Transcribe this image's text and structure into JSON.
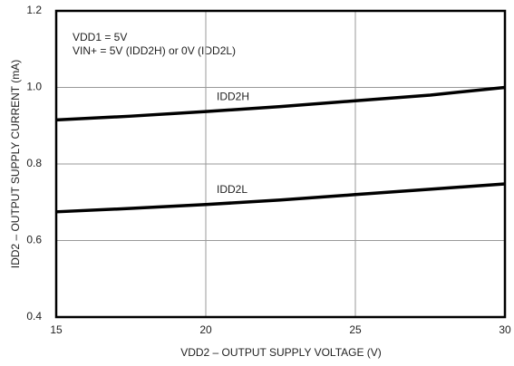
{
  "chart_data": {
    "type": "line",
    "x": [
      15,
      17.5,
      20,
      22.5,
      25,
      27.5,
      30
    ],
    "series": [
      {
        "name": "IDD2H",
        "color": "#000000",
        "values": [
          0.915,
          0.925,
          0.937,
          0.95,
          0.965,
          0.98,
          1.0
        ]
      },
      {
        "name": "IDD2L",
        "color": "#000000",
        "values": [
          0.675,
          0.684,
          0.694,
          0.706,
          0.72,
          0.734,
          0.748
        ]
      }
    ],
    "xlabel": "VDD2 – OUTPUT SUPPLY VOLTAGE (V)",
    "ylabel": "IDD2 – OUTPUT SUPPLY CURRENT (mA)",
    "annotations": [
      "VDD1 = 5V",
      "VIN+ = 5V (IDD2H) or 0V (IDD2L)"
    ],
    "xlim": [
      15,
      30
    ],
    "xticks": [
      15,
      20,
      25,
      30
    ],
    "ylim": [
      0.4,
      1.2
    ],
    "yticks": [
      0.4,
      0.6,
      0.8,
      {
        "value": 1,
        "label": "1.0"
      },
      1.2
    ],
    "grid": true
  }
}
